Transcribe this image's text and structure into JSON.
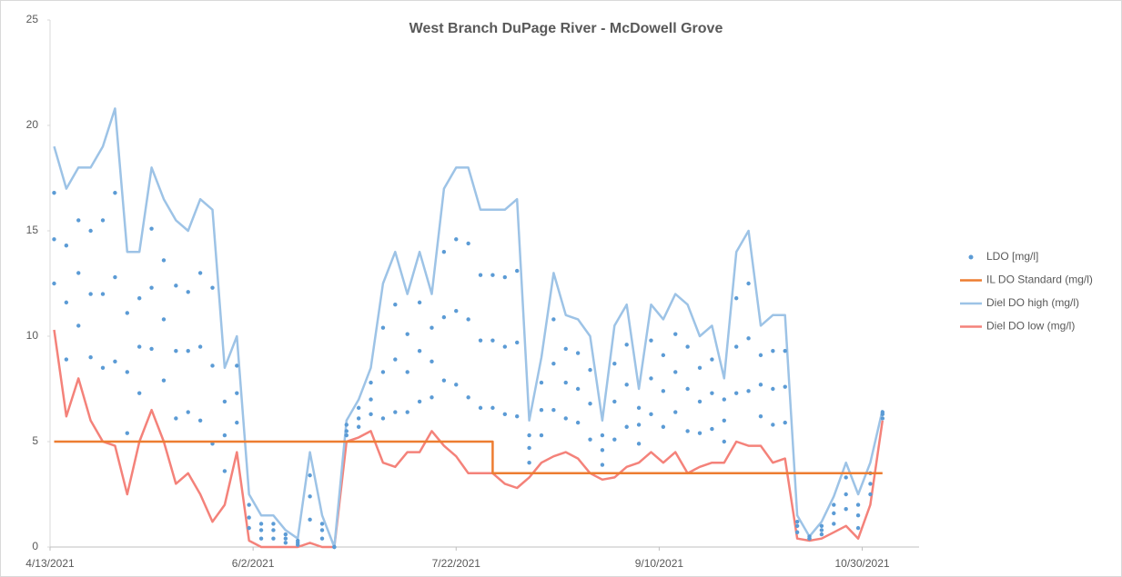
{
  "chart_data": {
    "type": "line",
    "title": "West Branch DuPage River - McDowell Grove",
    "xlim": [
      "4/13/2021",
      "11/13/2021"
    ],
    "xticks": [
      "4/13/2021",
      "6/2/2021",
      "7/22/2021",
      "9/10/2021",
      "10/30/2021"
    ],
    "ylim": [
      0,
      25
    ],
    "yticks": [
      0,
      5,
      10,
      15,
      20,
      25
    ],
    "grid": false,
    "legend": "right",
    "series": [
      {
        "name": "LDO [mg/l]",
        "type": "scatter",
        "color": "#5b9bd5",
        "x": [
          "4/14/2021",
          "4/17/2021",
          "4/20/2021",
          "4/23/2021",
          "4/26/2021",
          "4/29/2021",
          "5/2/2021",
          "5/5/2021",
          "5/8/2021",
          "5/11/2021",
          "5/14/2021",
          "5/17/2021",
          "5/20/2021",
          "5/23/2021",
          "5/26/2021",
          "5/29/2021",
          "6/1/2021",
          "6/4/2021",
          "6/7/2021",
          "6/10/2021",
          "6/13/2021",
          "6/16/2021",
          "6/19/2021",
          "6/22/2021",
          "6/25/2021",
          "6/28/2021",
          "7/1/2021",
          "7/4/2021",
          "7/7/2021",
          "7/10/2021",
          "7/13/2021",
          "7/16/2021",
          "7/19/2021",
          "7/22/2021",
          "7/25/2021",
          "7/28/2021",
          "7/31/2021",
          "8/3/2021",
          "8/6/2021",
          "8/9/2021",
          "8/12/2021",
          "8/15/2021",
          "8/18/2021",
          "8/21/2021",
          "8/24/2021",
          "8/27/2021",
          "8/30/2021",
          "9/2/2021",
          "9/5/2021",
          "9/8/2021",
          "9/11/2021",
          "9/14/2021",
          "9/17/2021",
          "9/20/2021",
          "9/23/2021",
          "9/26/2021",
          "9/29/2021",
          "10/2/2021",
          "10/5/2021",
          "10/8/2021",
          "10/11/2021",
          "10/14/2021",
          "10/17/2021",
          "10/20/2021",
          "10/23/2021",
          "10/26/2021",
          "10/29/2021",
          "11/1/2021",
          "11/4/2021"
        ],
        "values": [
          [
            12.5,
            14.6,
            16.8
          ],
          [
            8.9,
            11.6,
            14.3
          ],
          [
            10.5,
            13,
            15.5
          ],
          [
            9,
            12,
            15
          ],
          [
            8.5,
            12,
            15.5
          ],
          [
            8.8,
            12.8,
            16.8
          ],
          [
            5.4,
            8.3,
            11.1
          ],
          [
            7.3,
            9.5,
            11.8
          ],
          [
            9.4,
            12.3,
            15.1
          ],
          [
            7.9,
            10.8,
            13.6
          ],
          [
            6.1,
            9.3,
            12.4
          ],
          [
            6.4,
            9.3,
            12.1
          ],
          [
            6,
            9.5,
            13
          ],
          [
            4.9,
            8.6,
            12.3
          ],
          [
            3.6,
            5.3,
            6.9
          ],
          [
            5.9,
            7.3,
            8.6
          ],
          [
            0.9,
            1.4,
            2
          ],
          [
            0.4,
            0.8,
            1.1
          ],
          [
            0.4,
            0.8,
            1.1
          ],
          [
            0.2,
            0.4,
            0.6
          ],
          [
            0.1,
            0.2,
            0.3
          ],
          [
            1.3,
            2.4,
            3.4
          ],
          [
            0.4,
            0.8,
            1.1
          ],
          [
            0,
            0,
            0
          ],
          [
            5.3,
            5.5,
            5.8
          ],
          [
            5.7,
            6.1,
            6.6
          ],
          [
            6.3,
            7,
            7.8
          ],
          [
            6.1,
            8.3,
            10.4
          ],
          [
            6.4,
            8.9,
            11.5
          ],
          [
            6.4,
            8.3,
            10.1
          ],
          [
            6.9,
            9.3,
            11.6
          ],
          [
            7.1,
            8.8,
            10.4
          ],
          [
            7.9,
            10.9,
            14
          ],
          [
            7.7,
            11.2,
            14.6
          ],
          [
            7.1,
            10.8,
            14.4
          ],
          [
            6.6,
            9.8,
            12.9
          ],
          [
            6.6,
            9.8,
            12.9
          ],
          [
            6.3,
            9.5,
            12.8
          ],
          [
            6.2,
            9.7,
            13.1
          ],
          [
            4,
            4.7,
            5.3
          ],
          [
            5.3,
            6.5,
            7.8
          ],
          [
            6.5,
            8.7,
            10.8
          ],
          [
            6.1,
            7.8,
            9.4
          ],
          [
            5.9,
            7.5,
            9.2
          ],
          [
            5.1,
            6.8,
            8.4
          ],
          [
            3.9,
            4.6,
            5.3
          ],
          [
            5.1,
            6.9,
            8.7
          ],
          [
            5.7,
            7.7,
            9.6
          ],
          [
            4.9,
            5.8,
            6.6
          ],
          [
            6.3,
            8,
            9.8
          ],
          [
            5.7,
            7.4,
            9.1
          ],
          [
            6.4,
            8.3,
            10.1
          ],
          [
            5.5,
            7.5,
            9.5
          ],
          [
            5.4,
            6.9,
            8.5
          ],
          [
            5.6,
            7.3,
            8.9
          ],
          [
            5,
            6,
            7
          ],
          [
            7.3,
            9.5,
            11.8
          ],
          [
            7.4,
            9.9,
            12.5
          ],
          [
            6.2,
            7.7,
            9.1
          ],
          [
            5.8,
            7.5,
            9.3
          ],
          [
            5.9,
            7.6,
            9.3
          ],
          [
            0.7,
            1,
            1.2
          ],
          [
            0.4,
            0.4,
            0.5
          ],
          [
            0.6,
            0.8,
            1
          ],
          [
            1.1,
            1.6,
            2
          ],
          [
            1.8,
            2.5,
            3.3
          ],
          [
            0.9,
            1.5,
            2
          ],
          [
            2.5,
            3,
            3.5
          ],
          [
            6.1,
            6.3,
            6.4
          ]
        ]
      },
      {
        "name": "IL DO Standard (mg/l)",
        "type": "line",
        "color": "#ed7d31",
        "x": [
          "4/14/2021",
          "7/31/2021",
          "7/31/2021",
          "11/4/2021"
        ],
        "values": [
          5,
          5,
          3.5,
          3.5
        ]
      },
      {
        "name": "Diel DO high (mg/l)",
        "type": "line",
        "color": "#9dc3e6",
        "x": [
          "4/14/2021",
          "4/17/2021",
          "4/20/2021",
          "4/23/2021",
          "4/26/2021",
          "4/29/2021",
          "5/2/2021",
          "5/5/2021",
          "5/8/2021",
          "5/11/2021",
          "5/14/2021",
          "5/17/2021",
          "5/20/2021",
          "5/23/2021",
          "5/26/2021",
          "5/29/2021",
          "6/1/2021",
          "6/4/2021",
          "6/7/2021",
          "6/10/2021",
          "6/13/2021",
          "6/16/2021",
          "6/19/2021",
          "6/22/2021",
          "6/25/2021",
          "6/28/2021",
          "7/1/2021",
          "7/4/2021",
          "7/7/2021",
          "7/10/2021",
          "7/13/2021",
          "7/16/2021",
          "7/19/2021",
          "7/22/2021",
          "7/25/2021",
          "7/28/2021",
          "7/31/2021",
          "8/3/2021",
          "8/6/2021",
          "8/9/2021",
          "8/12/2021",
          "8/15/2021",
          "8/18/2021",
          "8/21/2021",
          "8/24/2021",
          "8/27/2021",
          "8/30/2021",
          "9/2/2021",
          "9/5/2021",
          "9/8/2021",
          "9/11/2021",
          "9/14/2021",
          "9/17/2021",
          "9/20/2021",
          "9/23/2021",
          "9/26/2021",
          "9/29/2021",
          "10/2/2021",
          "10/5/2021",
          "10/8/2021",
          "10/11/2021",
          "10/14/2021",
          "10/17/2021",
          "10/20/2021",
          "10/23/2021",
          "10/26/2021",
          "10/29/2021",
          "11/1/2021",
          "11/4/2021"
        ],
        "values": [
          19,
          17,
          18,
          18,
          19,
          20.8,
          14,
          14,
          18,
          16.5,
          15.5,
          15,
          16.5,
          16,
          8.5,
          10,
          2.5,
          1.5,
          1.5,
          0.8,
          0.4,
          4.5,
          1.5,
          0,
          6,
          7,
          8.5,
          12.5,
          14,
          12,
          14,
          12,
          17,
          18,
          18,
          16,
          16,
          16,
          16.5,
          6,
          9,
          13,
          11,
          10.8,
          10,
          6,
          10.5,
          11.5,
          7.5,
          11.5,
          10.8,
          12,
          11.5,
          10,
          10.5,
          8,
          14,
          15,
          10.5,
          11,
          11,
          1.5,
          0.5,
          1.2,
          2.4,
          4,
          2.5,
          4,
          6.5
        ]
      },
      {
        "name": "Diel DO low (mg/l)",
        "type": "line",
        "color": "#f4827a",
        "x": [
          "4/14/2021",
          "4/17/2021",
          "4/20/2021",
          "4/23/2021",
          "4/26/2021",
          "4/29/2021",
          "5/2/2021",
          "5/5/2021",
          "5/8/2021",
          "5/11/2021",
          "5/14/2021",
          "5/17/2021",
          "5/20/2021",
          "5/23/2021",
          "5/26/2021",
          "5/29/2021",
          "6/1/2021",
          "6/4/2021",
          "6/7/2021",
          "6/10/2021",
          "6/13/2021",
          "6/16/2021",
          "6/19/2021",
          "6/22/2021",
          "6/25/2021",
          "6/28/2021",
          "7/1/2021",
          "7/4/2021",
          "7/7/2021",
          "7/10/2021",
          "7/13/2021",
          "7/16/2021",
          "7/19/2021",
          "7/22/2021",
          "7/25/2021",
          "7/28/2021",
          "7/31/2021",
          "8/3/2021",
          "8/6/2021",
          "8/9/2021",
          "8/12/2021",
          "8/15/2021",
          "8/18/2021",
          "8/21/2021",
          "8/24/2021",
          "8/27/2021",
          "8/30/2021",
          "9/2/2021",
          "9/5/2021",
          "9/8/2021",
          "9/11/2021",
          "9/14/2021",
          "9/17/2021",
          "9/20/2021",
          "9/23/2021",
          "9/26/2021",
          "9/29/2021",
          "10/2/2021",
          "10/5/2021",
          "10/8/2021",
          "10/11/2021",
          "10/14/2021",
          "10/17/2021",
          "10/20/2021",
          "10/23/2021",
          "10/26/2021",
          "10/29/2021",
          "11/1/2021",
          "11/4/2021"
        ],
        "values": [
          10.3,
          6.2,
          8,
          6,
          5,
          4.8,
          2.5,
          5,
          6.5,
          5,
          3,
          3.5,
          2.5,
          1.2,
          2,
          4.5,
          0.3,
          0,
          0,
          0,
          0,
          0.2,
          0,
          0,
          5,
          5.2,
          5.5,
          4,
          3.8,
          4.5,
          4.5,
          5.5,
          4.8,
          4.3,
          3.5,
          3.5,
          3.5,
          3,
          2.8,
          3.3,
          4,
          4.3,
          4.5,
          4.2,
          3.5,
          3.2,
          3.3,
          3.8,
          4,
          4.5,
          4,
          4.5,
          3.5,
          3.8,
          4,
          4,
          5,
          4.8,
          4.8,
          4,
          4.2,
          0.4,
          0.3,
          0.4,
          0.7,
          1,
          0.4,
          2,
          6
        ]
      }
    ]
  }
}
